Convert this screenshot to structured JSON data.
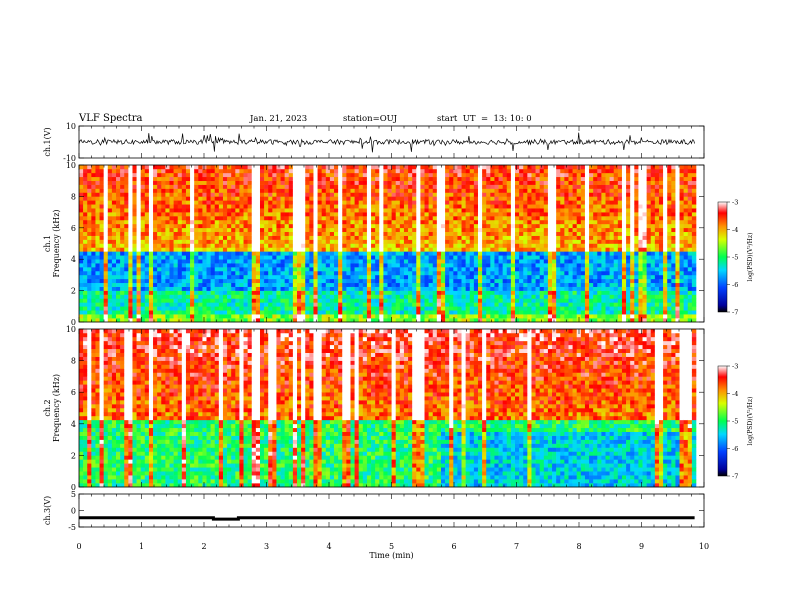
{
  "header": {
    "title": "VLF Spectra",
    "date": "Jan. 21, 2023",
    "station": "station=OUJ",
    "start_time": "start  UT  =  13: 10: 0"
  },
  "chart_data": [
    {
      "type": "line",
      "ylabel": "ch.1(V)",
      "ylim": [
        -10,
        10
      ],
      "y_tick_labels": [
        "10",
        "-10"
      ],
      "xlim": [
        0,
        10
      ],
      "description_series": [
        {
          "values_range": [
            -3,
            3
          ]
        }
      ]
    },
    {
      "type": "heatmap",
      "ylabel": "Frequency (kHz)",
      "channel": "ch.1",
      "ylim": [
        0,
        10
      ],
      "y_tick_labels": [
        "0",
        "2",
        "4",
        "6",
        "8",
        "10"
      ],
      "xlim": [
        0,
        10
      ],
      "colorbar": {
        "label": "log(PSD)(V²/Hz)",
        "range": [
          -7,
          -3
        ],
        "tick_labels": [
          "-3",
          "-4",
          "-5",
          "-6",
          "-7"
        ]
      }
    },
    {
      "type": "heatmap",
      "ylabel": "Frequency (kHz)",
      "channel": "ch.2",
      "ylim": [
        0,
        10
      ],
      "y_tick_labels": [
        "0",
        "2",
        "4",
        "6",
        "8",
        "10"
      ],
      "xlim": [
        0,
        10
      ],
      "colorbar": {
        "label": "log(PSD)(V²/Hz)",
        "range": [
          -7,
          -3
        ],
        "tick_labels": [
          "-3",
          "-4",
          "-5",
          "-6",
          "-7"
        ]
      }
    },
    {
      "type": "line",
      "ylabel": "ch.3(V)",
      "ylim": [
        -5,
        5
      ],
      "y_tick_labels": [
        "5",
        "0",
        "-5"
      ],
      "xlim": [
        0,
        10
      ],
      "series": [
        {
          "x": [
            0,
            2.15,
            2.15,
            2.55,
            2.55,
            9.85
          ],
          "values": [
            -2.2,
            -2.2,
            -2.6,
            -2.6,
            -2.2,
            -2.2
          ]
        }
      ]
    }
  ],
  "x_axis": {
    "label": "Time (min)",
    "tick_labels": [
      "0",
      "1",
      "2",
      "3",
      "4",
      "5",
      "6",
      "7",
      "8",
      "9",
      "10"
    ],
    "range": [
      0,
      10
    ]
  }
}
